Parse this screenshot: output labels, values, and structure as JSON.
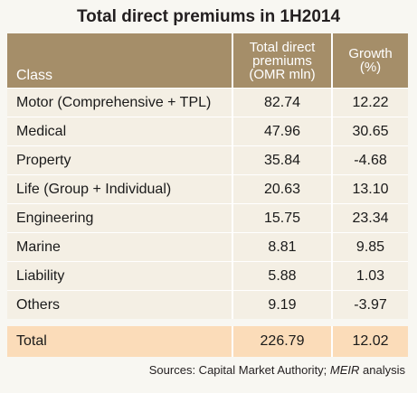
{
  "title": "Total direct premiums in 1H2014",
  "table": {
    "headers": {
      "class": "Class",
      "premiums_line1": "Total direct",
      "premiums_line2": "premiums",
      "premiums_line3": "(OMR mln)",
      "growth_line1": "Growth",
      "growth_line2": "(%)"
    },
    "rows": [
      {
        "class": "Motor (Comprehensive + TPL)",
        "premiums": "82.74",
        "growth": "12.22"
      },
      {
        "class": "Medical",
        "premiums": "47.96",
        "growth": "30.65"
      },
      {
        "class": "Property",
        "premiums": "35.84",
        "growth": "-4.68"
      },
      {
        "class": "Life (Group + Individual)",
        "premiums": "20.63",
        "growth": "13.10"
      },
      {
        "class": "Engineering",
        "premiums": "15.75",
        "growth": "23.34"
      },
      {
        "class": "Marine",
        "premiums": "8.81",
        "growth": "9.85"
      },
      {
        "class": "Liability",
        "premiums": "5.88",
        "growth": "1.03"
      },
      {
        "class": "Others",
        "premiums": "9.19",
        "growth": "-3.97"
      }
    ],
    "total": {
      "class": "Total",
      "premiums": "226.79",
      "growth": "12.02"
    }
  },
  "source": {
    "prefix": "Sources: Capital Market Authority; ",
    "italic": "MEIR",
    "suffix": " analysis"
  }
}
